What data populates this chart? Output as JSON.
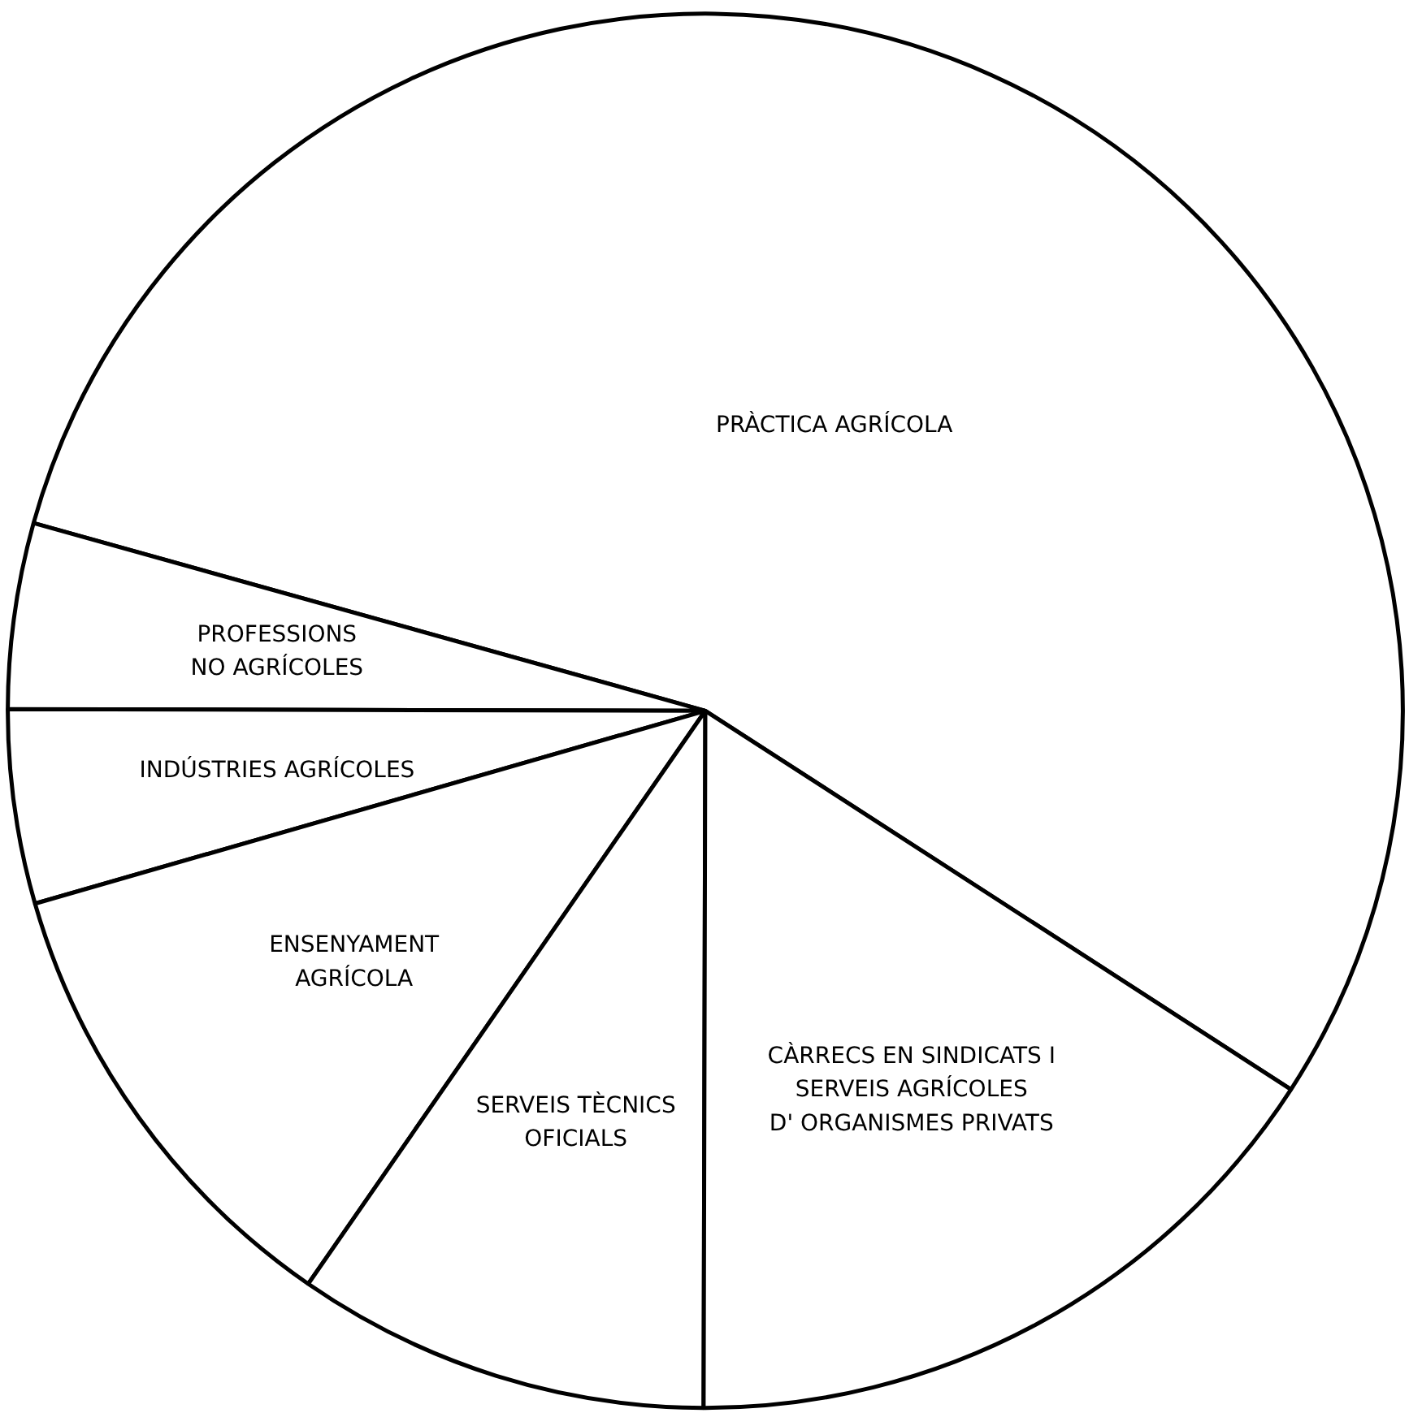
{
  "chart_data": {
    "type": "pie",
    "categories": [
      "PRÀCTICA AGRÍCOLA",
      "PROFESSIONS\nNO AGRÍCOLES",
      "INDÚSTRIES AGRÍCOLES",
      "ENSENYAMENT\nAGRÍCOLA",
      "SERVEIS TÈCNICS\nOFICIALS",
      "CÀRRECS EN SINDICATS I\nSERVEIS AGRÍCOLES\nD' ORGANISMES PRIVATS"
    ],
    "values": [
      54.8,
      4.3,
      4.5,
      10.9,
      9.6,
      15.9
    ],
    "colors": [
      "#ffffff",
      "#ffffff",
      "#ffffff",
      "#ffffff",
      "#ffffff",
      "#ffffff"
    ]
  }
}
